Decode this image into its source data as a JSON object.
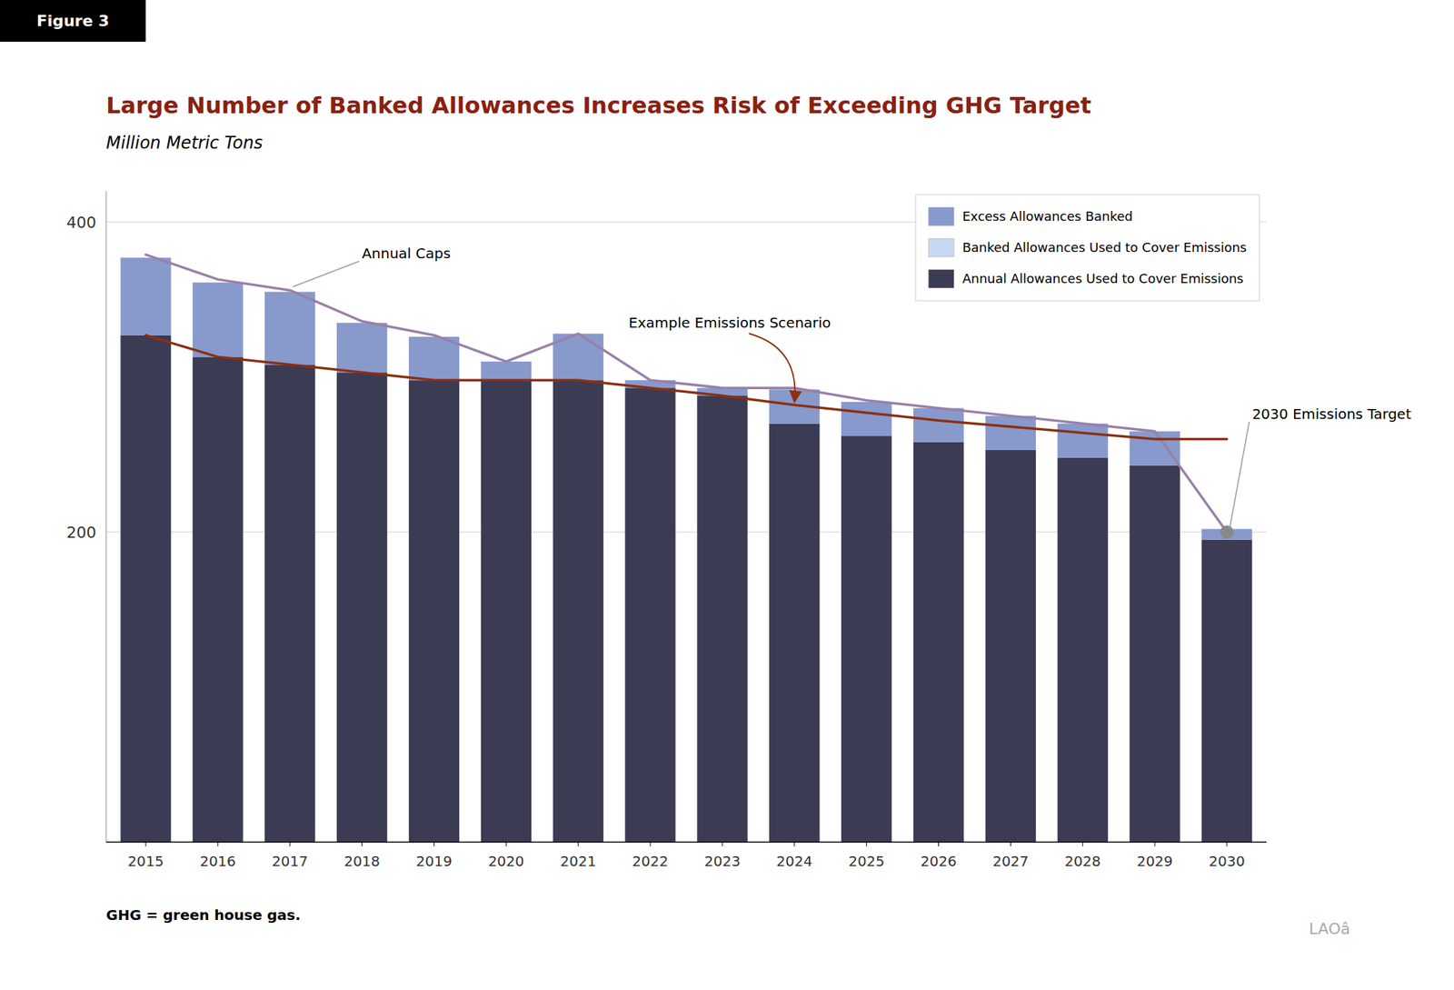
{
  "chart_data": {
    "type": "bar",
    "stacked": true,
    "title": "Large Number of Banked Allowances Increases Risk of Exceeding GHG Target",
    "subtitle": "Million Metric Tons",
    "figure_label": "Figure 3",
    "footnote": "GHG = green house gas.",
    "watermark": "LAOâ",
    "categories": [
      "2015",
      "2016",
      "2017",
      "2018",
      "2019",
      "2020",
      "2021",
      "2022",
      "2023",
      "2024",
      "2025",
      "2026",
      "2027",
      "2028",
      "2029",
      "2030"
    ],
    "series": [
      {
        "name": "Annual Allowances Used to Cover Emissions",
        "type": "bar",
        "color": "#3c3b54",
        "values": [
          327,
          313,
          308,
          303,
          298,
          298,
          298,
          293,
          288,
          270,
          262,
          258,
          253,
          248,
          243,
          195
        ]
      },
      {
        "name": "Banked Allowances Used to Cover Emissions",
        "type": "bar",
        "color": "#c8d8f0",
        "values": [
          0,
          0,
          0,
          0,
          0,
          0,
          0,
          0,
          0,
          0,
          0,
          0,
          0,
          0,
          0,
          0
        ]
      },
      {
        "name": "Excess Allowances Banked",
        "type": "bar",
        "color": "#8899cc",
        "values": [
          50,
          48,
          47,
          32,
          28,
          12,
          30,
          5,
          5,
          22,
          22,
          22,
          22,
          22,
          22,
          7
        ]
      },
      {
        "name": "Annual Caps",
        "type": "line",
        "color": "#9980a8",
        "values": [
          379,
          363,
          356,
          336,
          327,
          310,
          328,
          298,
          293,
          293,
          285,
          280,
          275,
          270,
          265,
          200
        ]
      },
      {
        "name": "Example Emissions Scenario",
        "type": "line",
        "color": "#8b3010",
        "values": [
          327,
          313,
          308,
          303,
          298,
          298,
          298,
          293,
          288,
          282,
          277,
          272,
          268,
          264,
          260,
          260
        ]
      },
      {
        "name": "2030 Emissions Target",
        "type": "scatter",
        "marker": "circle",
        "color": "#888888",
        "values": [
          null,
          null,
          null,
          null,
          null,
          null,
          null,
          null,
          null,
          null,
          null,
          null,
          null,
          null,
          null,
          200
        ]
      }
    ],
    "ylim": [
      0,
      420
    ],
    "yticks": [
      200,
      400
    ],
    "grid": true,
    "legend": "upper right"
  }
}
